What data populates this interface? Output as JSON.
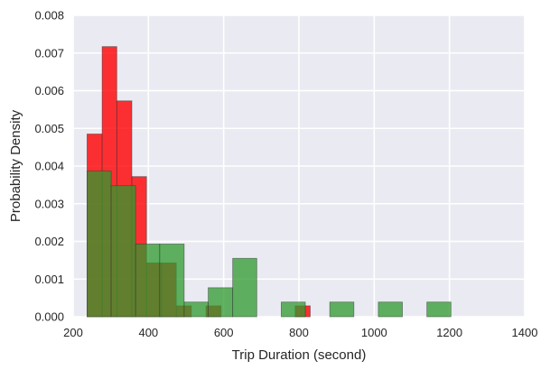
{
  "chart_data": {
    "type": "bar",
    "title": "",
    "xlabel": "Trip Duration (second)",
    "ylabel": "Probability Density",
    "xlim": [
      200,
      1400
    ],
    "ylim": [
      0,
      0.008
    ],
    "x_ticks": [
      200,
      400,
      600,
      800,
      1000,
      1200,
      1400
    ],
    "x_tick_labels": [
      "200",
      "400",
      "600",
      "800",
      "1000",
      "1200",
      "1400"
    ],
    "y_ticks": [
      0,
      0.001,
      0.002,
      0.003,
      0.004,
      0.005,
      0.006,
      0.007,
      0.008
    ],
    "y_tick_labels": [
      "0.000",
      "0.001",
      "0.002",
      "0.003",
      "0.004",
      "0.005",
      "0.006",
      "0.007",
      "0.008"
    ],
    "grid": true,
    "background": "#EAEAF2",
    "series": [
      {
        "color": "#FF0000",
        "opacity": 0.8,
        "bins": [
          {
            "x0": 237,
            "x1": 277,
            "density": 0.00485
          },
          {
            "x0": 277,
            "x1": 316,
            "density": 0.00717
          },
          {
            "x0": 316,
            "x1": 356,
            "density": 0.00573
          },
          {
            "x0": 356,
            "x1": 395,
            "density": 0.00372
          },
          {
            "x0": 395,
            "x1": 435,
            "density": 0.00143
          },
          {
            "x0": 435,
            "x1": 474,
            "density": 0.00143
          },
          {
            "x0": 474,
            "x1": 514,
            "density": 0.00029
          },
          {
            "x0": 553,
            "x1": 593,
            "density": 0.00029
          },
          {
            "x0": 790,
            "x1": 830,
            "density": 0.00029
          }
        ]
      },
      {
        "color": "#2E9B2E",
        "opacity": 0.75,
        "bins": [
          {
            "x0": 237,
            "x1": 301,
            "density": 0.00387
          },
          {
            "x0": 301,
            "x1": 366,
            "density": 0.00348
          },
          {
            "x0": 366,
            "x1": 430,
            "density": 0.00193
          },
          {
            "x0": 430,
            "x1": 495,
            "density": 0.00193
          },
          {
            "x0": 495,
            "x1": 559,
            "density": 0.00039
          },
          {
            "x0": 559,
            "x1": 624,
            "density": 0.00077
          },
          {
            "x0": 624,
            "x1": 688,
            "density": 0.00155
          },
          {
            "x0": 753,
            "x1": 817,
            "density": 0.00039
          },
          {
            "x0": 882,
            "x1": 946,
            "density": 0.00039
          },
          {
            "x0": 1011,
            "x1": 1075,
            "density": 0.00039
          },
          {
            "x0": 1140,
            "x1": 1204,
            "density": 0.00039
          }
        ]
      }
    ]
  }
}
